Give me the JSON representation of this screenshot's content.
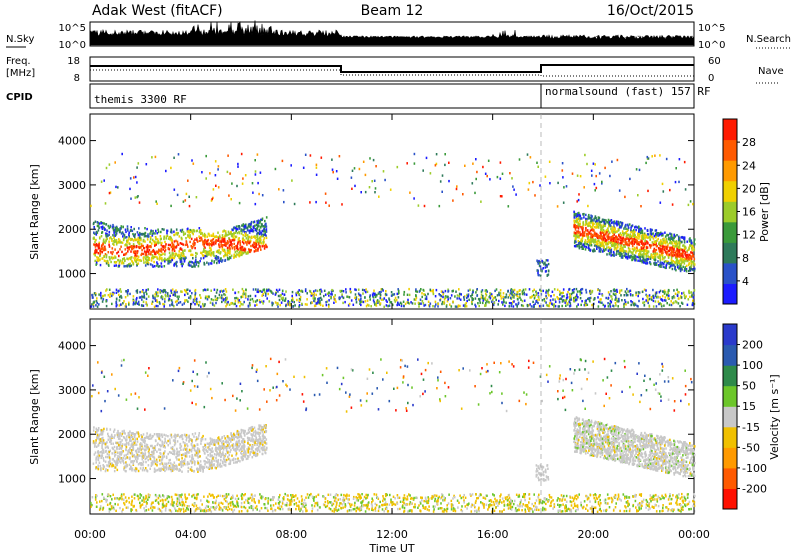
{
  "header": {
    "station": "Adak West (fitACF)",
    "beam": "Beam 12",
    "date": "16/Oct/2015"
  },
  "strips": {
    "nsky_label": "N.Sky",
    "nsearch_label": "N.Search",
    "nsky_ticks": [
      "10^5",
      "10^0"
    ],
    "nsky_right_ticks": [
      "10^5",
      "10^0"
    ],
    "freq_label": "Freq.",
    "freq_unit": "[MHz]",
    "freq_ticks": [
      "18",
      "8"
    ],
    "nave_label": "Nave",
    "nave_ticks": [
      "60",
      "0"
    ],
    "cpid_label": "CPID",
    "cpid_segments": [
      {
        "text": "themis 3300 RF",
        "start_hour": 0,
        "end_hour": 18
      },
      {
        "text": "normalsound (fast) 157 RF",
        "start_hour": 18,
        "end_hour": 24
      }
    ]
  },
  "colors": {
    "power": [
      "#1c1cff",
      "#2a52c8",
      "#2e7a5a",
      "#3a9a3a",
      "#9ccc2a",
      "#f0d000",
      "#ff9a00",
      "#ff5a00",
      "#ff1a00"
    ],
    "velocity": [
      "#2a3acb",
      "#2a5ab0",
      "#2e8a4a",
      "#6cc62a",
      "#c8c8c8",
      "#f0c000",
      "#ff9a00",
      "#ff5a00",
      "#ff1000"
    ]
  },
  "chart_data": [
    {
      "type": "heatmap",
      "name": "power",
      "ylabel": "Slant Range [km]",
      "yticks": [
        1000,
        2000,
        3000,
        4000
      ],
      "ylim": [
        200,
        4600
      ],
      "xlim": [
        0,
        24
      ],
      "colorbar_label": "Power [dB]",
      "colorbar_ticks": [
        "4",
        "8",
        "12",
        "16",
        "20",
        "24",
        "28"
      ],
      "colorbar_range": [
        0,
        32
      ]
    },
    {
      "type": "heatmap",
      "name": "velocity",
      "ylabel": "Slant Range [km]",
      "yticks": [
        1000,
        2000,
        3000,
        4000
      ],
      "ylim": [
        200,
        4600
      ],
      "xlim": [
        0,
        24
      ],
      "colorbar_label": "Velocity [m s⁻¹]",
      "colorbar_ticks": [
        "200",
        "100",
        "50",
        "15",
        "-15",
        "-50",
        "-100",
        "-200"
      ]
    }
  ],
  "xaxis": {
    "ticks": [
      "00:00",
      "04:00",
      "08:00",
      "12:00",
      "16:00",
      "20:00",
      "00:00"
    ],
    "label": "Time UT"
  }
}
